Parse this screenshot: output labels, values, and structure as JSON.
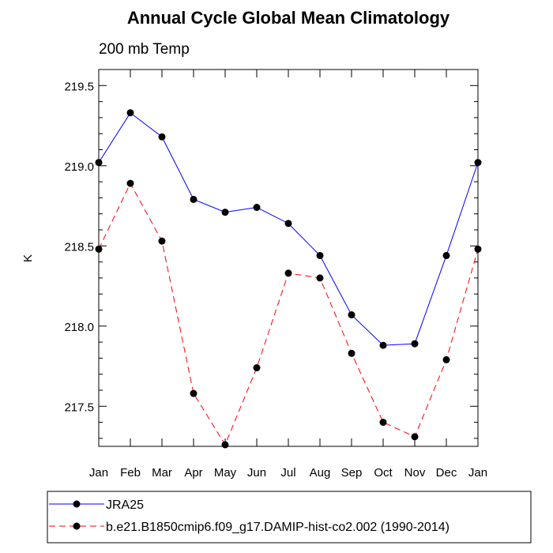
{
  "chart_data": {
    "type": "line",
    "title": "Annual Cycle Global Mean Climatology",
    "subtitle": "200 mb Temp",
    "xlabel": "",
    "ylabel": "K",
    "categories": [
      "Jan",
      "Feb",
      "Mar",
      "Apr",
      "May",
      "Jun",
      "Jul",
      "Aug",
      "Sep",
      "Oct",
      "Nov",
      "Dec",
      "Jan"
    ],
    "ylim": [
      217.25,
      219.6
    ],
    "yticks": [
      217.5,
      218.0,
      218.5,
      219.0,
      219.5
    ],
    "ytick_labels": [
      "217.5",
      "218.0",
      "218.5",
      "219.0",
      "219.5"
    ],
    "grid": false,
    "legend_position": "bottom",
    "series": [
      {
        "name": "JRA25",
        "color": "#0000ff",
        "line_style": "solid",
        "values": [
          219.02,
          219.33,
          219.18,
          218.79,
          218.71,
          218.74,
          218.64,
          218.44,
          218.07,
          217.88,
          217.89,
          218.44,
          219.02
        ]
      },
      {
        "name": "b.e21.B1850cmip6.f09_g17.DAMIP-hist-co2.002 (1990-2014)",
        "color": "#ff0000",
        "line_style": "dashed",
        "values": [
          218.48,
          218.89,
          218.53,
          217.58,
          217.26,
          217.74,
          218.33,
          218.3,
          217.83,
          217.4,
          217.31,
          217.79,
          218.48
        ]
      }
    ]
  }
}
